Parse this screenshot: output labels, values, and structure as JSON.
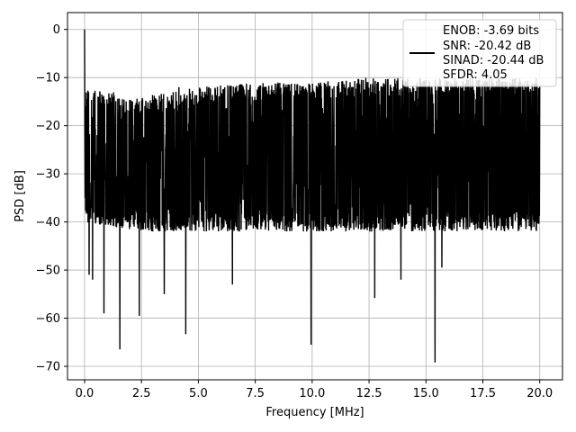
{
  "chart_data": {
    "type": "line",
    "xlabel": "Frequency [MHz]",
    "ylabel": "PSD [dB]",
    "xlim": [
      -0.75,
      21.0
    ],
    "ylim": [
      -72.8,
      3.5
    ],
    "xticks": [
      0.0,
      2.5,
      5.0,
      7.5,
      10.0,
      12.5,
      15.0,
      17.5,
      20.0
    ],
    "xtick_labels": [
      "0.0",
      "2.5",
      "5.0",
      "7.5",
      "10.0",
      "12.5",
      "15.0",
      "17.5",
      "20.0"
    ],
    "yticks": [
      0,
      -10,
      -20,
      -30,
      -40,
      -50,
      -60,
      -70
    ],
    "ytick_labels": [
      "0",
      "−10",
      "−20",
      "−30",
      "−40",
      "−50",
      "−60",
      "−70"
    ],
    "grid": true,
    "legend_placement": "top-right",
    "series": [
      {
        "color": "#000000",
        "legend_lines": [
          "ENOB: -3.69 bits",
          "SNR: -20.42 dB",
          "SINAD: -20.44 dB",
          "SFDR: 4.05"
        ],
        "peak": {
          "x": 0.0,
          "y": 0.0
        },
        "noise_envelope": [
          {
            "x": 0.0,
            "top": -16,
            "bottom": -40
          },
          {
            "x": 2.5,
            "top": -18,
            "bottom": -42
          },
          {
            "x": 5.0,
            "top": -16,
            "bottom": -42
          },
          {
            "x": 7.5,
            "top": -15,
            "bottom": -42
          },
          {
            "x": 10.0,
            "top": -15,
            "bottom": -42
          },
          {
            "x": 12.5,
            "top": -14,
            "bottom": -42
          },
          {
            "x": 15.0,
            "top": -14,
            "bottom": -42
          },
          {
            "x": 17.5,
            "top": -14,
            "bottom": -42
          },
          {
            "x": 20.0,
            "top": -14,
            "bottom": -42
          }
        ],
        "dips": [
          {
            "x": 0.2,
            "y": -51
          },
          {
            "x": 0.35,
            "y": -52
          },
          {
            "x": 0.85,
            "y": -59
          },
          {
            "x": 1.55,
            "y": -66.5
          },
          {
            "x": 2.4,
            "y": -59.5
          },
          {
            "x": 3.5,
            "y": -55
          },
          {
            "x": 4.45,
            "y": -63.3
          },
          {
            "x": 6.5,
            "y": -53
          },
          {
            "x": 9.95,
            "y": -65.5
          },
          {
            "x": 12.75,
            "y": -55.8
          },
          {
            "x": 13.9,
            "y": -52
          },
          {
            "x": 15.4,
            "y": -69.2
          },
          {
            "x": 15.7,
            "y": -49.5
          }
        ],
        "spikes": [
          {
            "x": 4.15,
            "y": -12
          },
          {
            "x": 9.9,
            "y": -11.5
          },
          {
            "x": 13.85,
            "y": -12.5
          },
          {
            "x": 15.8,
            "y": -13
          },
          {
            "x": 18.4,
            "y": -13.5
          }
        ]
      }
    ]
  }
}
